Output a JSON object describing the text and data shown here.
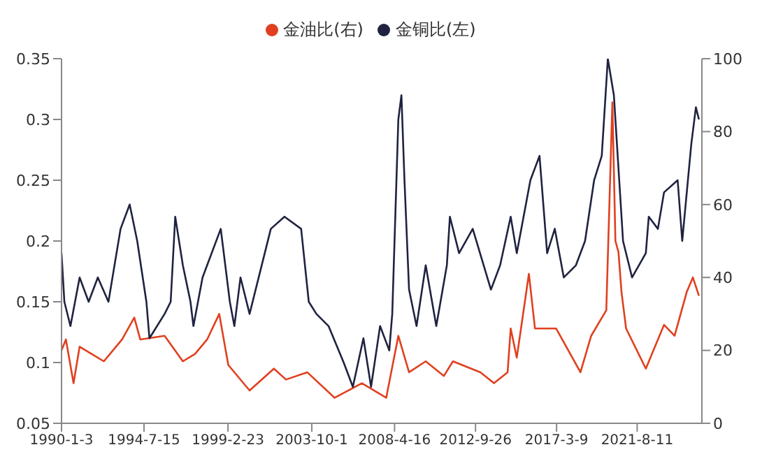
{
  "chart_data": {
    "type": "line",
    "legend": "top",
    "grid": false,
    "xlim": [
      "1990-01-03",
      "2025-03"
    ],
    "xticks": [
      {
        "value": "1990-01-03",
        "label": "1990-1-3"
      },
      {
        "value": "1994-07-15",
        "label": "1994-7-15"
      },
      {
        "value": "1999-02-23",
        "label": "1999-2-23"
      },
      {
        "value": "2003-10-01",
        "label": "2003-10-1"
      },
      {
        "value": "2008-04-16",
        "label": "2008-4-16"
      },
      {
        "value": "2012-09-26",
        "label": "2012-9-26"
      },
      {
        "value": "2017-03-09",
        "label": "2017-3-9"
      },
      {
        "value": "2021-08-11",
        "label": "2021-8-11"
      }
    ],
    "ylim": [
      0.05,
      0.35
    ],
    "yticks": [
      0.05,
      0.1,
      0.15,
      0.2,
      0.25,
      0.3,
      0.35
    ],
    "y2lim": [
      0,
      100
    ],
    "y2ticks": [
      0,
      20,
      40,
      60,
      80,
      100
    ],
    "series": [
      {
        "name": "金油比(右)",
        "color": "#e0401f",
        "axis": "y2",
        "x": [
          "1990-01-03",
          "1990-04",
          "1990-09",
          "1991-01",
          "1992-05",
          "1993-05",
          "1994-01",
          "1994-05",
          "1995-09",
          "1996-09",
          "1997-05",
          "1998-01",
          "1998-09",
          "1999-03",
          "2000-05",
          "2001-09",
          "2002-05",
          "2003-07",
          "2005-01",
          "2006-07",
          "2007-11",
          "2008-07",
          "2009-02",
          "2010-01",
          "2011-01",
          "2011-07",
          "2013-01",
          "2013-10",
          "2014-07",
          "2014-09",
          "2015-01",
          "2015-09",
          "2016-01",
          "2017-03",
          "2018-07",
          "2019-02",
          "2019-12",
          "2020-04",
          "2020-06",
          "2020-08",
          "2020-10",
          "2021-01",
          "2022-02",
          "2023-02",
          "2023-09",
          "2024-05",
          "2024-09",
          "2025-01"
        ],
        "values": [
          20,
          23,
          11,
          21,
          17,
          23,
          29,
          23,
          24,
          17,
          19,
          23,
          30,
          16,
          9,
          15,
          12,
          14,
          7,
          11,
          7,
          24,
          14,
          17,
          13,
          17,
          14,
          11,
          14,
          26,
          18,
          41,
          26,
          26,
          14,
          24,
          31,
          88,
          50,
          47,
          36,
          26,
          15,
          27,
          24,
          36,
          40,
          35
        ]
      },
      {
        "name": "金铜比(左)",
        "color": "#1f2340",
        "x": [
          "1990-01-03",
          "1990-03",
          "1990-07",
          "1991-01",
          "1991-07",
          "1992-01",
          "1992-08",
          "1993-04",
          "1993-10",
          "1994-03",
          "1994-09",
          "1994-11",
          "1995-09",
          "1996-01",
          "1996-04",
          "1996-09",
          "1997-02",
          "1997-04",
          "1997-10",
          "1998-10",
          "1999-04",
          "1999-07",
          "1999-11",
          "2000-05",
          "2001-07",
          "2002-04",
          "2003-03",
          "2003-08",
          "2004-01",
          "2004-09",
          "2005-07",
          "2006-01",
          "2006-08",
          "2007-01",
          "2007-07",
          "2008-01",
          "2008-03",
          "2008-07",
          "2008-09",
          "2008-11",
          "2009-02",
          "2009-07",
          "2010-01",
          "2010-08",
          "2011-03",
          "2011-05",
          "2011-11",
          "2012-08",
          "2013-08",
          "2014-02",
          "2014-09",
          "2015-01",
          "2015-10",
          "2016-04",
          "2016-09",
          "2017-02",
          "2017-08",
          "2018-04",
          "2018-10",
          "2019-04",
          "2019-09",
          "2020-01",
          "2020-05",
          "2020-11",
          "2021-05",
          "2022-02",
          "2022-04",
          "2022-10",
          "2023-02",
          "2023-11",
          "2024-02",
          "2024-08",
          "2024-11",
          "2025-01"
        ],
        "values": [
          0.19,
          0.15,
          0.13,
          0.17,
          0.15,
          0.17,
          0.15,
          0.21,
          0.23,
          0.2,
          0.15,
          0.12,
          0.14,
          0.15,
          0.22,
          0.18,
          0.15,
          0.13,
          0.17,
          0.21,
          0.15,
          0.13,
          0.17,
          0.14,
          0.21,
          0.22,
          0.21,
          0.15,
          0.14,
          0.13,
          0.1,
          0.08,
          0.12,
          0.08,
          0.13,
          0.11,
          0.14,
          0.3,
          0.32,
          0.25,
          0.16,
          0.13,
          0.18,
          0.13,
          0.18,
          0.22,
          0.19,
          0.21,
          0.16,
          0.18,
          0.22,
          0.19,
          0.25,
          0.27,
          0.19,
          0.21,
          0.17,
          0.18,
          0.2,
          0.25,
          0.27,
          0.35,
          0.32,
          0.2,
          0.17,
          0.19,
          0.22,
          0.21,
          0.24,
          0.25,
          0.2,
          0.28,
          0.31,
          0.3
        ]
      }
    ]
  }
}
